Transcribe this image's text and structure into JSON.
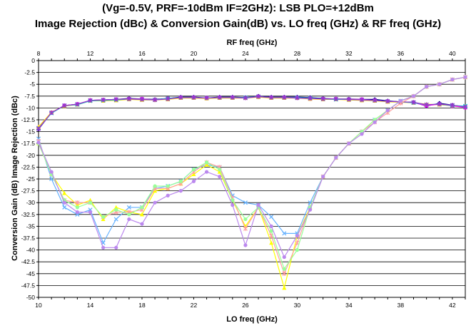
{
  "chart_data": {
    "type": "line",
    "title_line1": "(Vg=-0.5V, PRF=-10dBm IF=2GHz): LSB PLO=+12dBm",
    "title_line2": "Image Rejection (dBc) & Conversion Gain(dB)  vs. LO freq (GHz) & RF freq (GHz)",
    "xlabel": "LO freq (GHz)",
    "x2label": "RF freq (GHz)",
    "ylabel": "Conversion Gain (dB) Image Rejection (dBc)",
    "xlim": [
      10,
      43
    ],
    "x2lim": [
      8,
      41
    ],
    "ylim": [
      -50,
      0
    ],
    "xticks": [
      10,
      14,
      18,
      22,
      26,
      30,
      34,
      38,
      42
    ],
    "x2ticks": [
      8,
      12,
      16,
      20,
      24,
      28,
      32,
      36,
      40
    ],
    "yticks": [
      0,
      -2.5,
      -5,
      -7.5,
      -10,
      -12.5,
      -15,
      -17.5,
      -20,
      -22.5,
      -25,
      -27.5,
      -30,
      -32.5,
      -35,
      -37.5,
      -40,
      -42.5,
      -45,
      -47.5,
      -50
    ],
    "ytick_labels": [
      "0",
      "-2.5",
      "-5",
      "-7.5",
      "-10",
      "-12.5",
      "-15",
      "-17.5",
      "-20",
      "-22.5",
      "-25",
      "-27.5",
      "-30",
      "-32.5",
      "-35",
      "-37.5",
      "-40",
      "-42.5",
      "-45",
      "-47.5",
      "-50"
    ],
    "grid": "horizontal",
    "x": [
      10,
      11,
      12,
      13,
      14,
      15,
      16,
      17,
      18,
      19,
      20,
      21,
      22,
      23,
      24,
      25,
      26,
      27,
      28,
      29,
      30,
      31,
      32,
      33,
      34,
      35,
      36,
      37,
      38,
      39,
      40,
      41,
      42,
      43
    ],
    "series": [
      {
        "color": "#000080",
        "marker": "diamond",
        "values": [
          -14.5,
          -11,
          -9.5,
          -9.2,
          -8.4,
          -8.3,
          -8.2,
          -8,
          -8.1,
          -8.2,
          -8,
          -7.7,
          -7.7,
          -7.9,
          -7.7,
          -7.7,
          -7.8,
          -7.5,
          -7.7,
          -7.7,
          -7.7,
          -7.8,
          -8,
          -8.1,
          -8.1,
          -8.2,
          -8.2,
          -8.5,
          -8.7,
          -8.8,
          -9.6,
          -9,
          -9.4,
          -9.8
        ]
      },
      {
        "color": "#ff00ff",
        "marker": "square",
        "values": [
          -14.2,
          -11,
          -9.5,
          -9.2,
          -8.4,
          -8.3,
          -8.2,
          -8.1,
          -8.1,
          -8.3,
          -8,
          -7.8,
          -7.8,
          -7.9,
          -7.8,
          -7.8,
          -7.9,
          -7.6,
          -7.8,
          -7.8,
          -7.8,
          -7.9,
          -8.1,
          -8.1,
          -8.2,
          -8.2,
          -8.4,
          -8.6,
          -8.7,
          -8.9,
          -9.5,
          -9.2,
          -9.6,
          -9.9
        ]
      },
      {
        "color": "#ffd700",
        "marker": "triangle",
        "values": [
          -14,
          -10.9,
          -9.6,
          -9.3,
          -8.5,
          -8.5,
          -8.4,
          -8.2,
          -8.3,
          -8.3,
          -8.2,
          -7.9,
          -7.9,
          -8,
          -7.9,
          -7.9,
          -7.9,
          -7.7,
          -7.9,
          -7.9,
          -7.9,
          -8.1,
          -8.2,
          -8.2,
          -8.3,
          -8.4,
          -8.5,
          -8.7,
          -8.8,
          -8.9,
          -9.2,
          -9.3,
          -9.5,
          -9.7
        ]
      },
      {
        "color": "#00cccc",
        "marker": "x",
        "values": [
          -14.3,
          -11.1,
          -9.5,
          -9.3,
          -8.5,
          -8.4,
          -8.3,
          -8.1,
          -8.2,
          -8.3,
          -8,
          -7.8,
          -7.8,
          -7.9,
          -7.8,
          -7.8,
          -7.8,
          -7.6,
          -7.8,
          -7.8,
          -7.8,
          -7.9,
          -8.1,
          -8.2,
          -8.2,
          -8.3,
          -8.4,
          -8.6,
          -8.7,
          -8.9,
          -9.3,
          -9.2,
          -9.5,
          -9.6
        ]
      },
      {
        "color": "#9933cc",
        "marker": "star",
        "values": [
          -14.4,
          -11,
          -9.5,
          -9.2,
          -8.4,
          -8.3,
          -8.2,
          -8.1,
          -8.2,
          -8.3,
          -8.1,
          -7.8,
          -7.8,
          -7.9,
          -7.8,
          -7.8,
          -7.9,
          -7.6,
          -7.8,
          -7.8,
          -7.9,
          -8,
          -8.1,
          -8.1,
          -8.2,
          -8.3,
          -8.4,
          -8.6,
          -8.7,
          -8.8,
          -9.3,
          -9.2,
          -9.4,
          -9.8
        ]
      },
      {
        "color": "#66b2ff",
        "marker": "x",
        "values": [
          -16.5,
          -25,
          -31,
          -32.5,
          -31.5,
          -38.5,
          -33.5,
          -31,
          -31,
          -27,
          -26.5,
          -25.5,
          -23,
          -22,
          -22.5,
          -28.5,
          -30,
          -30.5,
          -33,
          -36.5,
          -36.5,
          -30,
          -24.5,
          -20.5,
          -17.5,
          -15,
          -12.5,
          -10.5,
          -8.5,
          -7.5,
          -5.5,
          -5,
          -4,
          -3.5
        ]
      },
      {
        "color": "#ffff00",
        "marker": "triangle",
        "values": [
          -17.5,
          -24,
          -28,
          -30.5,
          -29.5,
          -33.5,
          -31,
          -32,
          -32.5,
          -27.5,
          -27,
          -26,
          -24,
          -22,
          -23.5,
          -29.5,
          -35,
          -31,
          -38.5,
          -48,
          -37,
          -31,
          -24.5,
          -20.5,
          -17.5,
          -15,
          -12.5,
          -10.5,
          -8.5,
          -7.5,
          -5.5,
          -5,
          -4,
          -3.5
        ]
      },
      {
        "color": "#ffa0a0",
        "marker": "star",
        "values": [
          -17,
          -24,
          -29.5,
          -30,
          -30,
          -33,
          -32,
          -32,
          -31.5,
          -27,
          -27,
          -26,
          -23.5,
          -21.5,
          -22.5,
          -29,
          -35.5,
          -31,
          -37,
          -45,
          -38.5,
          -31,
          -24.5,
          -20.5,
          -17.5,
          -15,
          -13,
          -11,
          -9,
          -7.5,
          -5.5,
          -5,
          -4,
          -3.5
        ]
      },
      {
        "color": "#99ff99",
        "marker": "circle",
        "values": [
          -17.5,
          -24,
          -29.5,
          -31,
          -30,
          -33,
          -31.5,
          -32.5,
          -31,
          -26.5,
          -26.5,
          -25.5,
          -23,
          -21.5,
          -23,
          -29.5,
          -33.5,
          -31,
          -36,
          -44,
          -40,
          -31,
          -24.5,
          -20.5,
          -17.5,
          -15,
          -12.5,
          -10.5,
          -8.5,
          -7.5,
          -5.5,
          -5,
          -4,
          -3.5
        ]
      },
      {
        "color": "#bb88ee",
        "marker": "circle",
        "values": [
          -17.3,
          -23.5,
          -30,
          -32,
          -32,
          -39.5,
          -39.5,
          -33.5,
          -34.5,
          -30,
          -28.5,
          -27.5,
          -25.5,
          -23.5,
          -24.5,
          -30.5,
          -39,
          -30.5,
          -35,
          -41.5,
          -37,
          -31.5,
          -24.5,
          -20.5,
          -17.5,
          -15.5,
          -13,
          -10.5,
          -8.5,
          -7.5,
          -5.5,
          -5,
          -4,
          -3.5
        ]
      }
    ]
  }
}
